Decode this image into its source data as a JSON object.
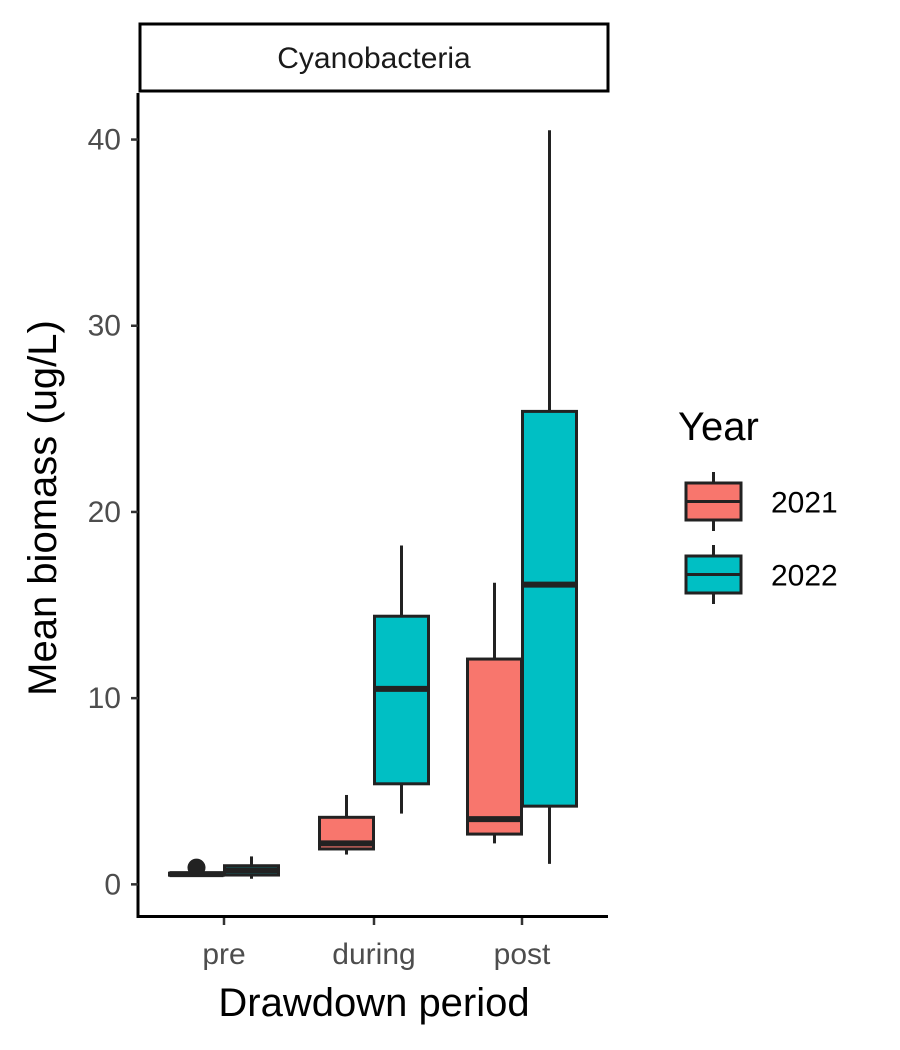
{
  "chart_data": {
    "type": "boxplot",
    "panel_title": "Cyanobacteria",
    "xlabel": "Drawdown period",
    "ylabel": "Mean biomass (ug/L)",
    "categories": [
      "pre",
      "during",
      "post"
    ],
    "yticks": [
      0,
      10,
      20,
      30,
      40
    ],
    "ylim": [
      -1.7,
      42.5
    ],
    "grid": false,
    "legend": {
      "title": "Year",
      "position": "right"
    },
    "colors": {
      "2021": "#F8766D",
      "2022": "#00BFC4",
      "outline": "#222222"
    },
    "series": [
      {
        "name": "2021",
        "boxes": [
          {
            "category": "pre",
            "whisker_low": 0.5,
            "q1": 0.5,
            "median": 0.55,
            "q3": 0.6,
            "whisker_high": 0.6,
            "outliers": [
              0.9
            ]
          },
          {
            "category": "during",
            "whisker_low": 1.6,
            "q1": 1.9,
            "median": 2.2,
            "q3": 3.6,
            "whisker_high": 4.8,
            "outliers": []
          },
          {
            "category": "post",
            "whisker_low": 2.2,
            "q1": 2.7,
            "median": 3.5,
            "q3": 12.1,
            "whisker_high": 16.2,
            "outliers": []
          }
        ]
      },
      {
        "name": "2022",
        "boxes": [
          {
            "category": "pre",
            "whisker_low": 0.3,
            "q1": 0.5,
            "median": 0.75,
            "q3": 1.0,
            "whisker_high": 1.5,
            "outliers": []
          },
          {
            "category": "during",
            "whisker_low": 3.8,
            "q1": 5.4,
            "median": 10.5,
            "q3": 14.4,
            "whisker_high": 18.2,
            "outliers": []
          },
          {
            "category": "post",
            "whisker_low": 1.1,
            "q1": 4.2,
            "median": 16.1,
            "q3": 25.4,
            "whisker_high": 40.5,
            "outliers": []
          }
        ]
      }
    ]
  }
}
